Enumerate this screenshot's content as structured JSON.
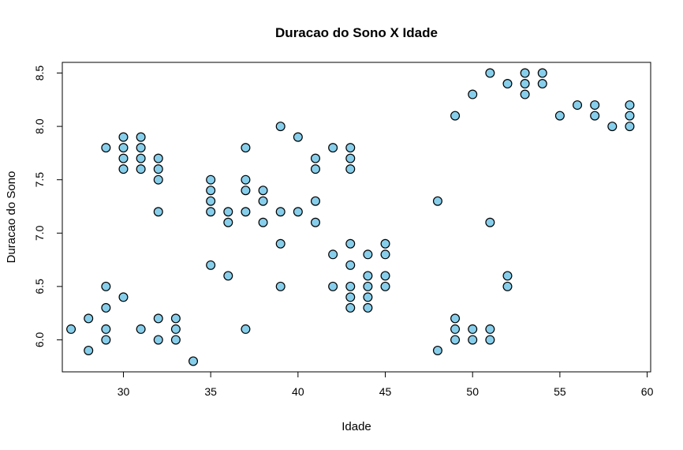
{
  "chart_data": {
    "type": "scatter",
    "title": "Duracao do Sono X Idade",
    "xlabel": "Idade",
    "ylabel": "Duracao do Sono",
    "xlim": [
      26.5,
      60.2
    ],
    "ylim": [
      5.7,
      8.6
    ],
    "xticks": [
      30,
      35,
      40,
      45,
      50,
      55,
      60
    ],
    "yticks": [
      6.0,
      6.5,
      7.0,
      7.5,
      8.0,
      8.5
    ],
    "ytick_labels": [
      "6.0",
      "6.5",
      "7.0",
      "7.5",
      "8.0",
      "8.5"
    ],
    "grid": false,
    "legend": "none",
    "colors": {
      "point_fill": "#87ceeb",
      "point_stroke": "#000000"
    },
    "points": [
      [
        27,
        6.1
      ],
      [
        28,
        6.2
      ],
      [
        28,
        5.9
      ],
      [
        29,
        7.8
      ],
      [
        29,
        6.5
      ],
      [
        29,
        6.3
      ],
      [
        29,
        6.1
      ],
      [
        29,
        6.0
      ],
      [
        30,
        7.9
      ],
      [
        30,
        7.8
      ],
      [
        30,
        7.7
      ],
      [
        30,
        7.6
      ],
      [
        30,
        6.4
      ],
      [
        31,
        7.9
      ],
      [
        31,
        7.8
      ],
      [
        31,
        7.7
      ],
      [
        31,
        7.6
      ],
      [
        31,
        6.1
      ],
      [
        32,
        7.7
      ],
      [
        32,
        7.6
      ],
      [
        32,
        7.5
      ],
      [
        32,
        7.2
      ],
      [
        32,
        6.2
      ],
      [
        32,
        6.0
      ],
      [
        33,
        6.2
      ],
      [
        33,
        6.1
      ],
      [
        33,
        6.0
      ],
      [
        34,
        5.8
      ],
      [
        35,
        7.5
      ],
      [
        35,
        7.4
      ],
      [
        35,
        7.3
      ],
      [
        35,
        7.2
      ],
      [
        35,
        6.7
      ],
      [
        36,
        7.2
      ],
      [
        36,
        7.1
      ],
      [
        36,
        6.6
      ],
      [
        37,
        7.8
      ],
      [
        37,
        7.5
      ],
      [
        37,
        7.4
      ],
      [
        37,
        7.2
      ],
      [
        37,
        6.1
      ],
      [
        38,
        7.4
      ],
      [
        38,
        7.3
      ],
      [
        38,
        7.1
      ],
      [
        39,
        8.0
      ],
      [
        39,
        7.2
      ],
      [
        39,
        6.9
      ],
      [
        39,
        6.5
      ],
      [
        40,
        7.9
      ],
      [
        40,
        7.2
      ],
      [
        41,
        7.7
      ],
      [
        41,
        7.6
      ],
      [
        41,
        7.3
      ],
      [
        41,
        7.1
      ],
      [
        42,
        7.8
      ],
      [
        42,
        6.8
      ],
      [
        42,
        6.5
      ],
      [
        43,
        7.8
      ],
      [
        43,
        7.7
      ],
      [
        43,
        7.6
      ],
      [
        43,
        6.9
      ],
      [
        43,
        6.7
      ],
      [
        43,
        6.5
      ],
      [
        43,
        6.4
      ],
      [
        43,
        6.3
      ],
      [
        44,
        6.8
      ],
      [
        44,
        6.6
      ],
      [
        44,
        6.5
      ],
      [
        44,
        6.4
      ],
      [
        44,
        6.3
      ],
      [
        45,
        6.9
      ],
      [
        45,
        6.8
      ],
      [
        45,
        6.6
      ],
      [
        45,
        6.5
      ],
      [
        48,
        7.3
      ],
      [
        48,
        5.9
      ],
      [
        49,
        8.1
      ],
      [
        49,
        6.2
      ],
      [
        49,
        6.1
      ],
      [
        49,
        6.0
      ],
      [
        50,
        8.3
      ],
      [
        50,
        6.1
      ],
      [
        50,
        6.0
      ],
      [
        51,
        8.5
      ],
      [
        51,
        7.1
      ],
      [
        51,
        6.1
      ],
      [
        51,
        6.0
      ],
      [
        52,
        8.4
      ],
      [
        52,
        6.6
      ],
      [
        52,
        6.5
      ],
      [
        53,
        8.5
      ],
      [
        53,
        8.4
      ],
      [
        53,
        8.3
      ],
      [
        54,
        8.5
      ],
      [
        54,
        8.4
      ],
      [
        55,
        8.1
      ],
      [
        56,
        8.2
      ],
      [
        57,
        8.2
      ],
      [
        57,
        8.1
      ],
      [
        58,
        8.0
      ],
      [
        59,
        8.2
      ],
      [
        59,
        8.1
      ],
      [
        59,
        8.0
      ]
    ]
  }
}
